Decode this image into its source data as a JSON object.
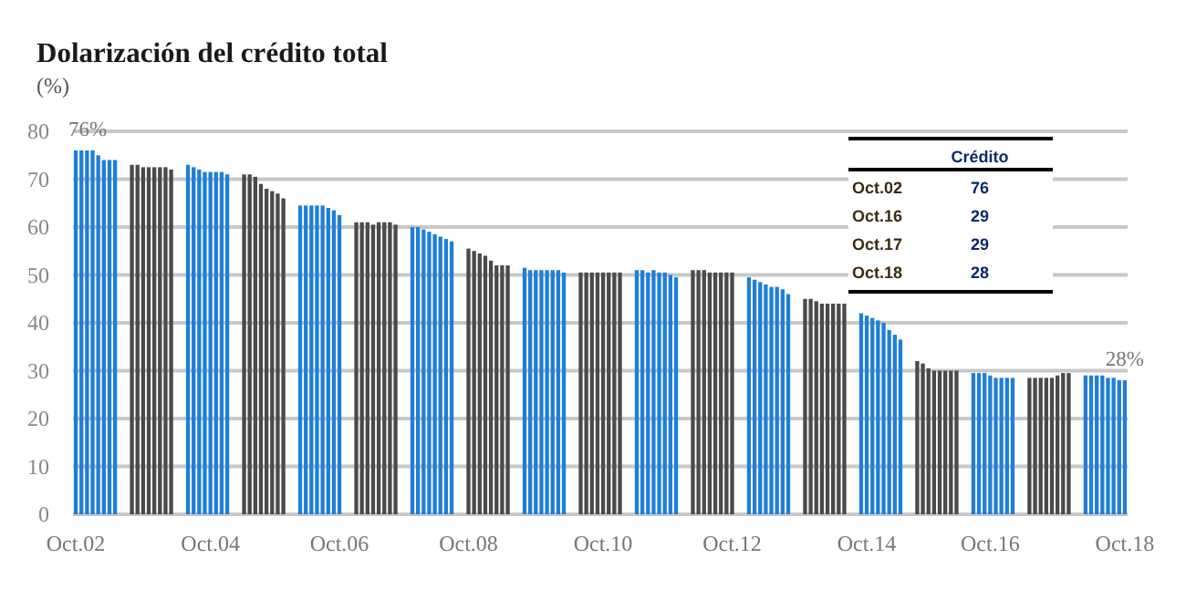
{
  "chart_data": {
    "type": "bar",
    "title": "Dolarización del crédito total",
    "ylabel": "(%)",
    "categories": [
      "Oct.02",
      null,
      null,
      null,
      null,
      null,
      null,
      null,
      null,
      null,
      null,
      null,
      null,
      null,
      null,
      null,
      null,
      null,
      null,
      null,
      null,
      null,
      null,
      null,
      "Oct.04",
      null,
      null,
      null,
      null,
      null,
      null,
      null,
      null,
      null,
      null,
      null,
      null,
      null,
      null,
      null,
      null,
      null,
      null,
      null,
      null,
      null,
      null,
      "Oct.06",
      null,
      null,
      null,
      null,
      null,
      null,
      null,
      null,
      null,
      null,
      null,
      null,
      null,
      null,
      null,
      null,
      null,
      null,
      null,
      null,
      null,
      null,
      "Oct.08",
      null,
      null,
      null,
      null,
      null,
      null,
      null,
      null,
      null,
      null,
      null,
      null,
      null,
      null,
      null,
      null,
      null,
      null,
      null,
      null,
      null,
      null,
      null,
      "Oct.10",
      null,
      null,
      null,
      null,
      null,
      null,
      null,
      null,
      null,
      null,
      null,
      null,
      null,
      null,
      null,
      null,
      null,
      null,
      null,
      null,
      null,
      null,
      "Oct.12",
      null,
      null,
      null,
      null,
      null,
      null,
      null,
      null,
      null,
      null,
      null,
      null,
      null,
      null,
      null,
      null,
      null,
      null,
      null,
      null,
      null,
      null,
      null,
      "Oct.14",
      null,
      null,
      null,
      null,
      null,
      null,
      null,
      null,
      null,
      null,
      null,
      null,
      null,
      null,
      null,
      null,
      null,
      null,
      null,
      null,
      null,
      "Oct.16",
      null,
      null,
      null,
      null,
      null,
      null,
      null,
      null,
      null,
      null,
      null,
      null,
      null,
      null,
      null,
      null,
      null,
      null,
      null,
      null,
      null,
      null,
      null,
      "Oct.18"
    ],
    "stacked": true,
    "series": [
      {
        "color": "#1f7fd6",
        "values": [
          76,
          76,
          76,
          76,
          75,
          74,
          74,
          74,
          null,
          null,
          null,
          null,
          null,
          null,
          null,
          null,
          null,
          null,
          null,
          null,
          73,
          72.5,
          72,
          71.5,
          71.5,
          71.5,
          71.5,
          71,
          null,
          null,
          null,
          null,
          null,
          null,
          null,
          null,
          null,
          null,
          null,
          null,
          64.5,
          64.5,
          64.5,
          64.5,
          64.5,
          64,
          63.5,
          62.5,
          null,
          null,
          null,
          null,
          null,
          null,
          null,
          null,
          null,
          null,
          null,
          null,
          60,
          60,
          59.5,
          59,
          58.5,
          58,
          57.5,
          57,
          null,
          null,
          null,
          null,
          null,
          null,
          null,
          null,
          null,
          null,
          null,
          null,
          51.5,
          51,
          51,
          51,
          51,
          51,
          51,
          50.5,
          null,
          null,
          null,
          null,
          null,
          null,
          null,
          null,
          null,
          null,
          null,
          null,
          51,
          51,
          50.5,
          51,
          50.5,
          50.5,
          50,
          49.5,
          null,
          null,
          null,
          null,
          null,
          null,
          null,
          null,
          null,
          null,
          null,
          null,
          49.5,
          49,
          48.5,
          48,
          47.5,
          47.5,
          47,
          46,
          null,
          null,
          null,
          null,
          null,
          null,
          null,
          null,
          null,
          null,
          null,
          null,
          42,
          41.5,
          41,
          40.5,
          40,
          38.5,
          37.5,
          36.5,
          null,
          null,
          null,
          null,
          null,
          null,
          null,
          null,
          null,
          null,
          null,
          null,
          29.5,
          29.5,
          29.5,
          29,
          28.5,
          28.5,
          28.5,
          28.5,
          null,
          null,
          null,
          null,
          null,
          null,
          null,
          null,
          null,
          null,
          null,
          null,
          29,
          29,
          29,
          29,
          28.5,
          28.5,
          28,
          28
        ]
      },
      {
        "color": "#4a4a4a",
        "values": [
          null,
          null,
          null,
          null,
          null,
          null,
          null,
          null,
          null,
          null,
          73,
          73,
          72.5,
          72.5,
          72.5,
          72.5,
          72.5,
          72,
          null,
          null,
          null,
          null,
          null,
          null,
          null,
          null,
          null,
          null,
          null,
          null,
          71,
          71,
          70.5,
          69,
          68,
          67.5,
          67,
          66,
          null,
          null,
          null,
          null,
          null,
          null,
          null,
          null,
          null,
          null,
          null,
          null,
          61,
          61,
          61,
          60.5,
          61,
          61,
          61,
          60.5,
          null,
          null,
          null,
          null,
          null,
          null,
          null,
          null,
          null,
          null,
          null,
          null,
          55.5,
          55,
          54.5,
          54,
          53,
          52,
          52,
          52,
          null,
          null,
          null,
          null,
          null,
          null,
          null,
          null,
          null,
          null,
          null,
          null,
          50.5,
          50.5,
          50.5,
          50.5,
          50.5,
          50.5,
          50.5,
          50.5,
          null,
          null,
          null,
          null,
          null,
          null,
          null,
          null,
          null,
          null,
          null,
          null,
          51,
          51,
          51,
          50.5,
          50.5,
          50.5,
          50.5,
          50.5,
          null,
          null,
          null,
          null,
          null,
          null,
          null,
          null,
          null,
          null,
          null,
          null,
          45,
          45,
          44.5,
          44,
          44,
          44,
          44,
          44,
          null,
          null,
          null,
          null,
          null,
          null,
          null,
          null,
          null,
          null,
          null,
          null,
          32,
          31.5,
          30.5,
          30,
          30,
          30,
          30,
          30,
          null,
          null,
          null,
          null,
          null,
          null,
          null,
          null,
          null,
          null,
          null,
          null,
          28.5,
          28.5,
          28.5,
          28.5,
          28.5,
          29,
          29.5,
          29.5,
          null,
          null,
          null,
          null,
          null,
          null,
          null,
          null,
          null,
          null
        ]
      }
    ],
    "ylim": [
      0,
      80
    ],
    "yticks": [
      0,
      10,
      20,
      30,
      40,
      50,
      60,
      70,
      80
    ],
    "grid": "y",
    "annotations": [
      {
        "text": "76%",
        "x": "Oct.02",
        "y": 76
      },
      {
        "text": "28%",
        "x": "Oct.18",
        "y": 28
      },
      "Crédito",
      "Oct.02",
      "76",
      "Oct.16",
      "29",
      "Oct.17",
      "29",
      "Oct.18",
      "28"
    ]
  }
}
